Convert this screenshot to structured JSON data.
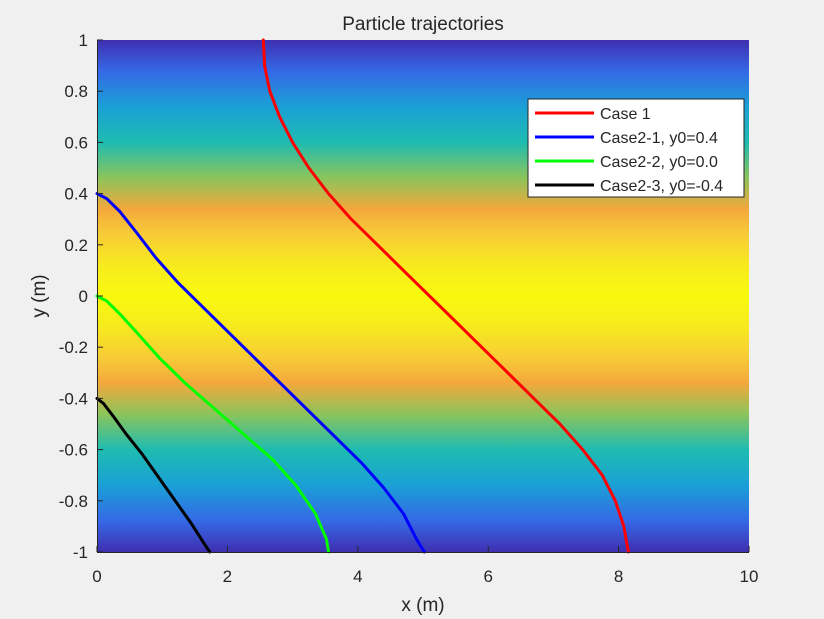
{
  "chart_data": {
    "type": "line",
    "title": "Particle trajectories",
    "xlabel": "x (m)",
    "ylabel": "y (m)",
    "xlim": [
      0,
      10
    ],
    "ylim": [
      -1,
      1
    ],
    "xticks": [
      0,
      2,
      4,
      6,
      8,
      10
    ],
    "yticks": [
      -1,
      -0.8,
      -0.6,
      -0.4,
      -0.2,
      0,
      0.2,
      0.4,
      0.6,
      0.8,
      1
    ],
    "xtick_labels": [
      "0",
      "2",
      "4",
      "6",
      "8",
      "10"
    ],
    "ytick_labels": [
      "-1",
      "-0.8",
      "-0.6",
      "-0.4",
      "-0.2",
      "0",
      "0.2",
      "0.4",
      "0.6",
      "0.8",
      "1"
    ],
    "grid": false,
    "legend_position": "top-right",
    "background": "velocity-field colormap (parula-like), bright yellow at y=0, dark blue at y=±1",
    "series": [
      {
        "name": "Case 1",
        "color": "#ff0000",
        "x": [
          2.55,
          2.57,
          2.65,
          2.8,
          3.0,
          3.25,
          3.55,
          3.9,
          4.3,
          4.7,
          5.1,
          5.5,
          5.9,
          6.3,
          6.7,
          7.1,
          7.45,
          7.75,
          7.95,
          8.08,
          8.15
        ],
        "y": [
          1.0,
          0.9,
          0.8,
          0.7,
          0.6,
          0.5,
          0.4,
          0.3,
          0.2,
          0.1,
          0.0,
          -0.1,
          -0.2,
          -0.3,
          -0.4,
          -0.5,
          -0.6,
          -0.7,
          -0.8,
          -0.9,
          -1.0
        ]
      },
      {
        "name": "Case2-1, y0=0.4",
        "color": "#0000ff",
        "x": [
          0.0,
          0.15,
          0.35,
          0.6,
          0.9,
          1.25,
          1.65,
          2.05,
          2.45,
          2.85,
          3.25,
          3.65,
          4.05,
          4.4,
          4.7,
          4.9,
          5.02
        ],
        "y": [
          0.4,
          0.38,
          0.33,
          0.25,
          0.15,
          0.05,
          -0.05,
          -0.15,
          -0.25,
          -0.35,
          -0.45,
          -0.55,
          -0.65,
          -0.75,
          -0.85,
          -0.95,
          -1.0
        ]
      },
      {
        "name": "Case2-2, y0=0.0",
        "color": "#00ff00",
        "x": [
          0.0,
          0.15,
          0.35,
          0.6,
          0.95,
          1.35,
          1.8,
          2.25,
          2.7,
          3.05,
          3.35,
          3.52,
          3.55
        ],
        "y": [
          0.0,
          -0.02,
          -0.07,
          -0.14,
          -0.24,
          -0.34,
          -0.44,
          -0.54,
          -0.64,
          -0.74,
          -0.85,
          -0.95,
          -1.0
        ]
      },
      {
        "name": "Case2-3, y0=-0.4",
        "color": "#000000",
        "x": [
          0.0,
          0.1,
          0.25,
          0.45,
          0.7,
          0.95,
          1.2,
          1.45,
          1.65,
          1.73
        ],
        "y": [
          -0.4,
          -0.42,
          -0.47,
          -0.54,
          -0.62,
          -0.71,
          -0.8,
          -0.89,
          -0.97,
          -1.0
        ]
      }
    ]
  }
}
